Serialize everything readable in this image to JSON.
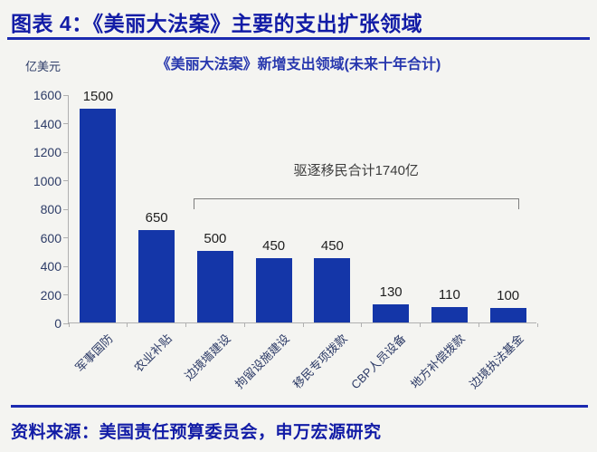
{
  "header": {
    "title": "图表 4：《美丽大法案》主要的支出扩张领域"
  },
  "chart_data": {
    "type": "bar",
    "title": "《美丽大法案》新增支出领域(未来十年合计)",
    "ylabel": "亿美元",
    "xlabel": "",
    "categories": [
      "军事国防",
      "农业补贴",
      "边境墙建设",
      "拘留设施建设",
      "移民专项拨款",
      "CBP人员设备",
      "地方补偿拨款",
      "边境执法基金"
    ],
    "values": [
      1500,
      650,
      500,
      450,
      450,
      130,
      110,
      100
    ],
    "ylim": [
      0,
      1600
    ],
    "ytick_step": 200,
    "grid": false,
    "legend": "none",
    "bar_color": "#1436a8",
    "annotation": {
      "text": "驱逐移民合计1740亿",
      "total": 1740,
      "span_category_start": "边境墙建设",
      "span_category_end": "边境执法基金"
    }
  },
  "footer": {
    "source": "资料来源：美国责任预算委员会，申万宏源研究"
  }
}
